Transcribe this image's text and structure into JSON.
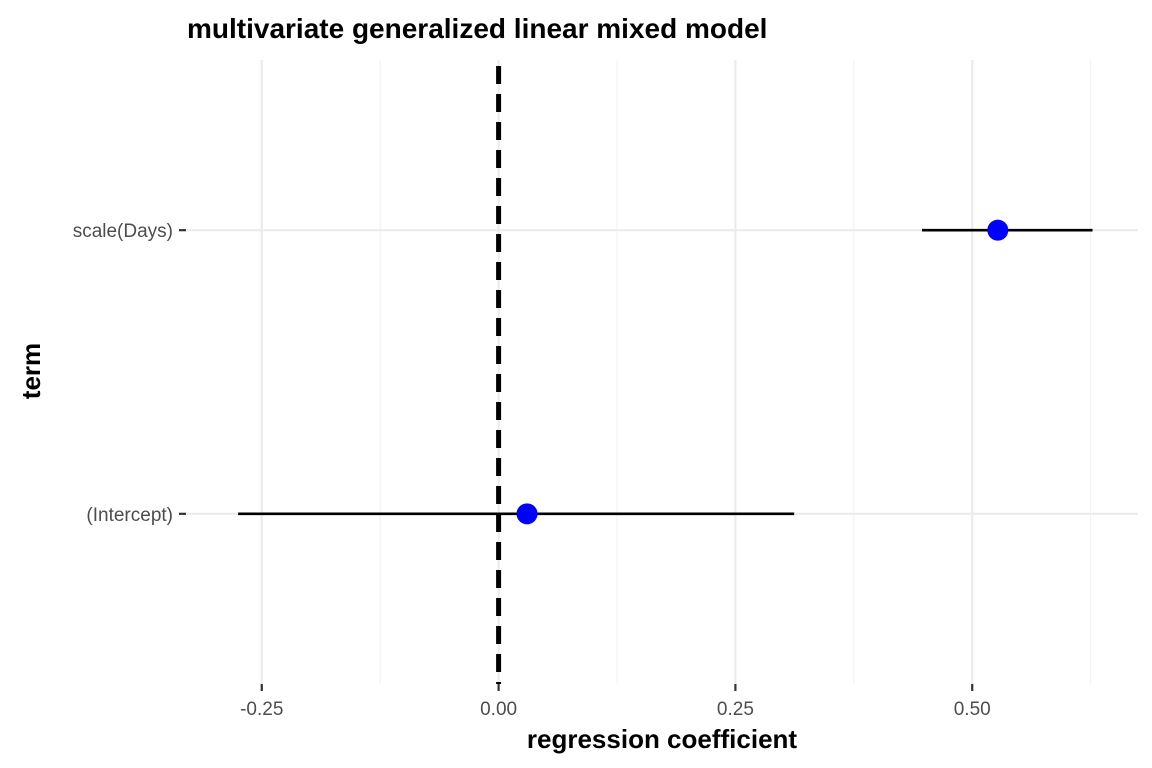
{
  "chart_data": {
    "type": "point-range",
    "title": "multivariate generalized linear mixed model",
    "xlabel": "regression coefficient",
    "ylabel": "term",
    "xlim": [
      -0.33,
      0.675
    ],
    "x_ticks": [
      -0.25,
      0.0,
      0.25,
      0.5
    ],
    "x_tick_labels": [
      "-0.25",
      "0.00",
      "0.25",
      "0.50"
    ],
    "categories": [
      "(Intercept)",
      "scale(Days)"
    ],
    "estimates": [
      0.03,
      0.527
    ],
    "conf_low": [
      -0.275,
      0.447
    ],
    "conf_high": [
      0.312,
      0.627
    ],
    "reference_line_x": 0,
    "reference_line_style": "dashed",
    "point_color": "#0000ff",
    "grid": true,
    "legend": "none"
  }
}
